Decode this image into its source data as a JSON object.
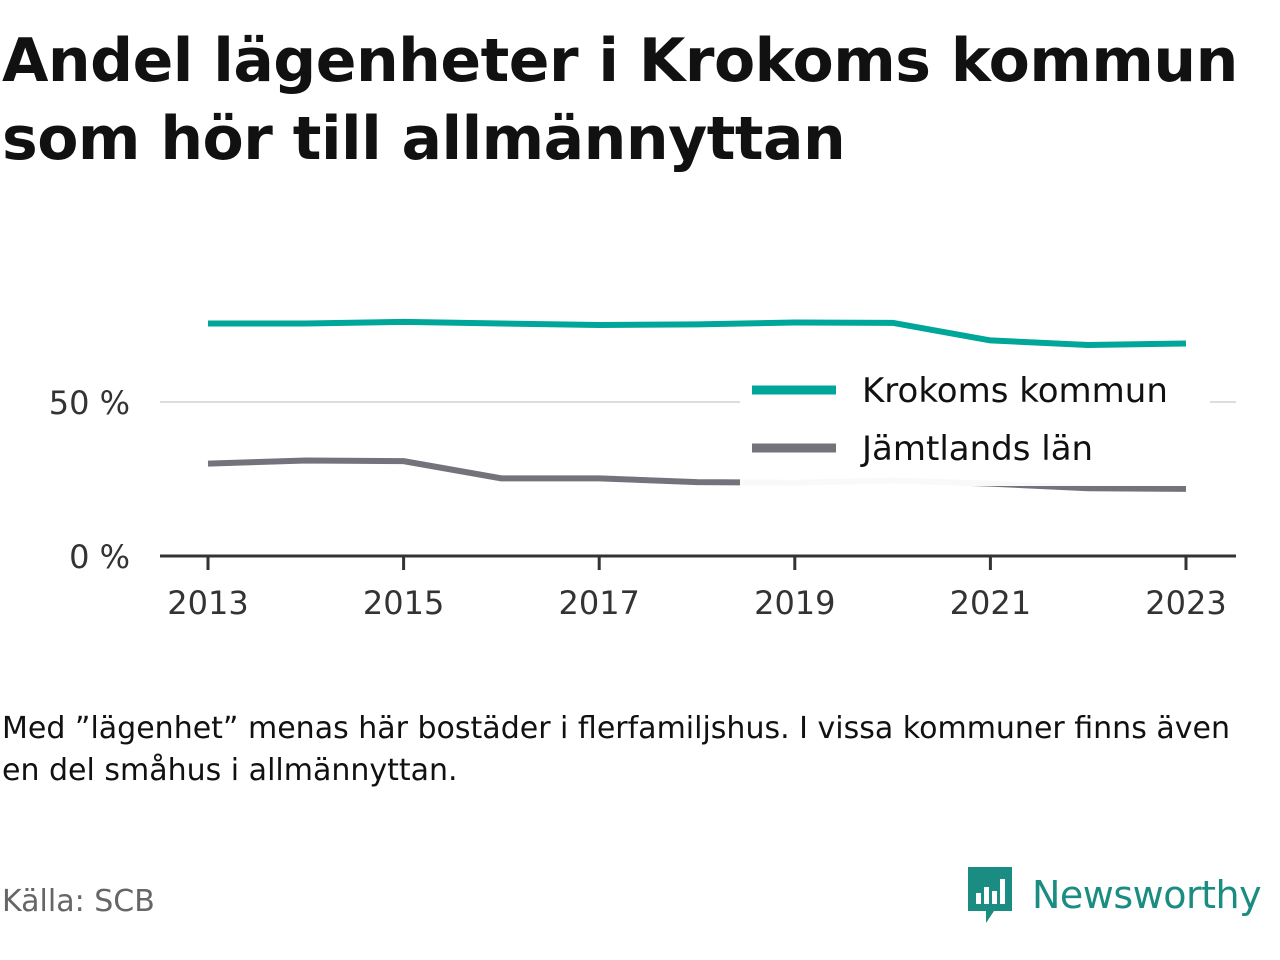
{
  "title": "Andel lägenheter i Krokoms kommun som hör till allmännyttan",
  "note": "Med ”lägenhet” menas här bostäder i flerfamiljshus. I vissa kommuner finns även en del småhus i allmännyttan.",
  "source": "Källa: SCB",
  "brand": {
    "name": "Newsworthy",
    "icon": "newsworthy-logo-icon",
    "color": "#1a8c82"
  },
  "chart_data": {
    "type": "line",
    "x": [
      2013,
      2014,
      2015,
      2016,
      2017,
      2018,
      2019,
      2020,
      2021,
      2022,
      2023
    ],
    "series": [
      {
        "name": "Krokoms kommun",
        "color": "#00a69a",
        "values": [
          75.5,
          75.5,
          76,
          75.5,
          75,
          75.2,
          75.8,
          75.7,
          70,
          68.5,
          69
        ]
      },
      {
        "name": "Jämtlands län",
        "color": "#74737b",
        "values": [
          30,
          31,
          30.8,
          25.2,
          25.2,
          24,
          23.8,
          24.5,
          23.5,
          22,
          21.8
        ]
      }
    ],
    "yticks": [
      0,
      50
    ],
    "ytick_labels": [
      "0 %",
      "50 %"
    ],
    "xticks": [
      2013,
      2015,
      2017,
      2019,
      2021,
      2023
    ],
    "xtick_labels": [
      "2013",
      "2015",
      "2017",
      "2019",
      "2021",
      "2023"
    ],
    "ylim": [
      0,
      80
    ],
    "grid": true,
    "legend_position": "right"
  }
}
